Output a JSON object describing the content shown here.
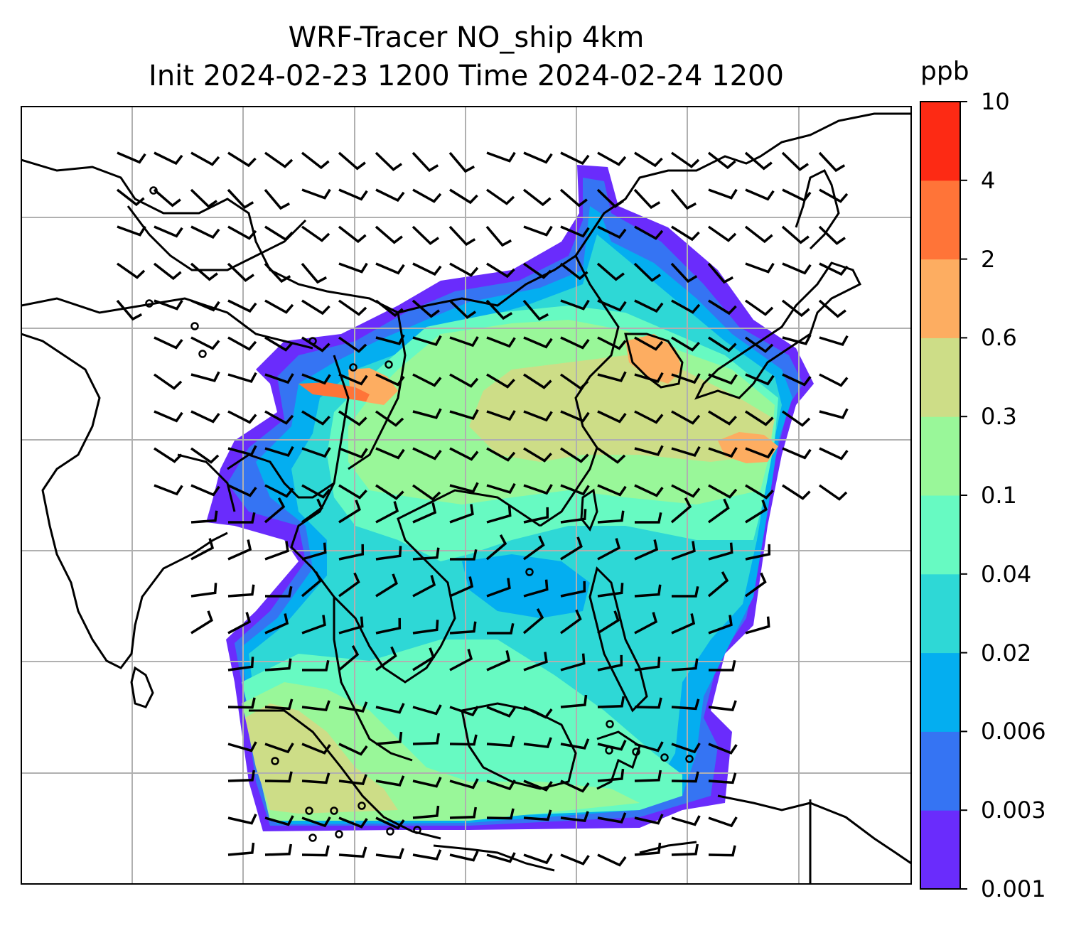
{
  "title": {
    "line1": "WRF-Tracer NO_ship 4km",
    "line2": "Init 2024-02-23 1200 Time 2024-02-24 1200"
  },
  "colorbar": {
    "unit": "ppb",
    "levels": [
      "0.001",
      "0.003",
      "0.006",
      "0.02",
      "0.04",
      "0.1",
      "0.3",
      "0.6",
      "2",
      "4",
      "10"
    ],
    "colors": [
      "#6a2cfc",
      "#3574f3",
      "#04aef0",
      "#2ed8d6",
      "#67fac2",
      "#99f799",
      "#cddd87",
      "#fdad61",
      "#ff7438",
      "#fd2a14"
    ]
  },
  "map": {
    "gridlines": true,
    "grid_color": "#b0b0b0",
    "coastline_color": "#000000",
    "barb_color": "#000000",
    "field_description_color_low": "#6a2cfc"
  }
}
